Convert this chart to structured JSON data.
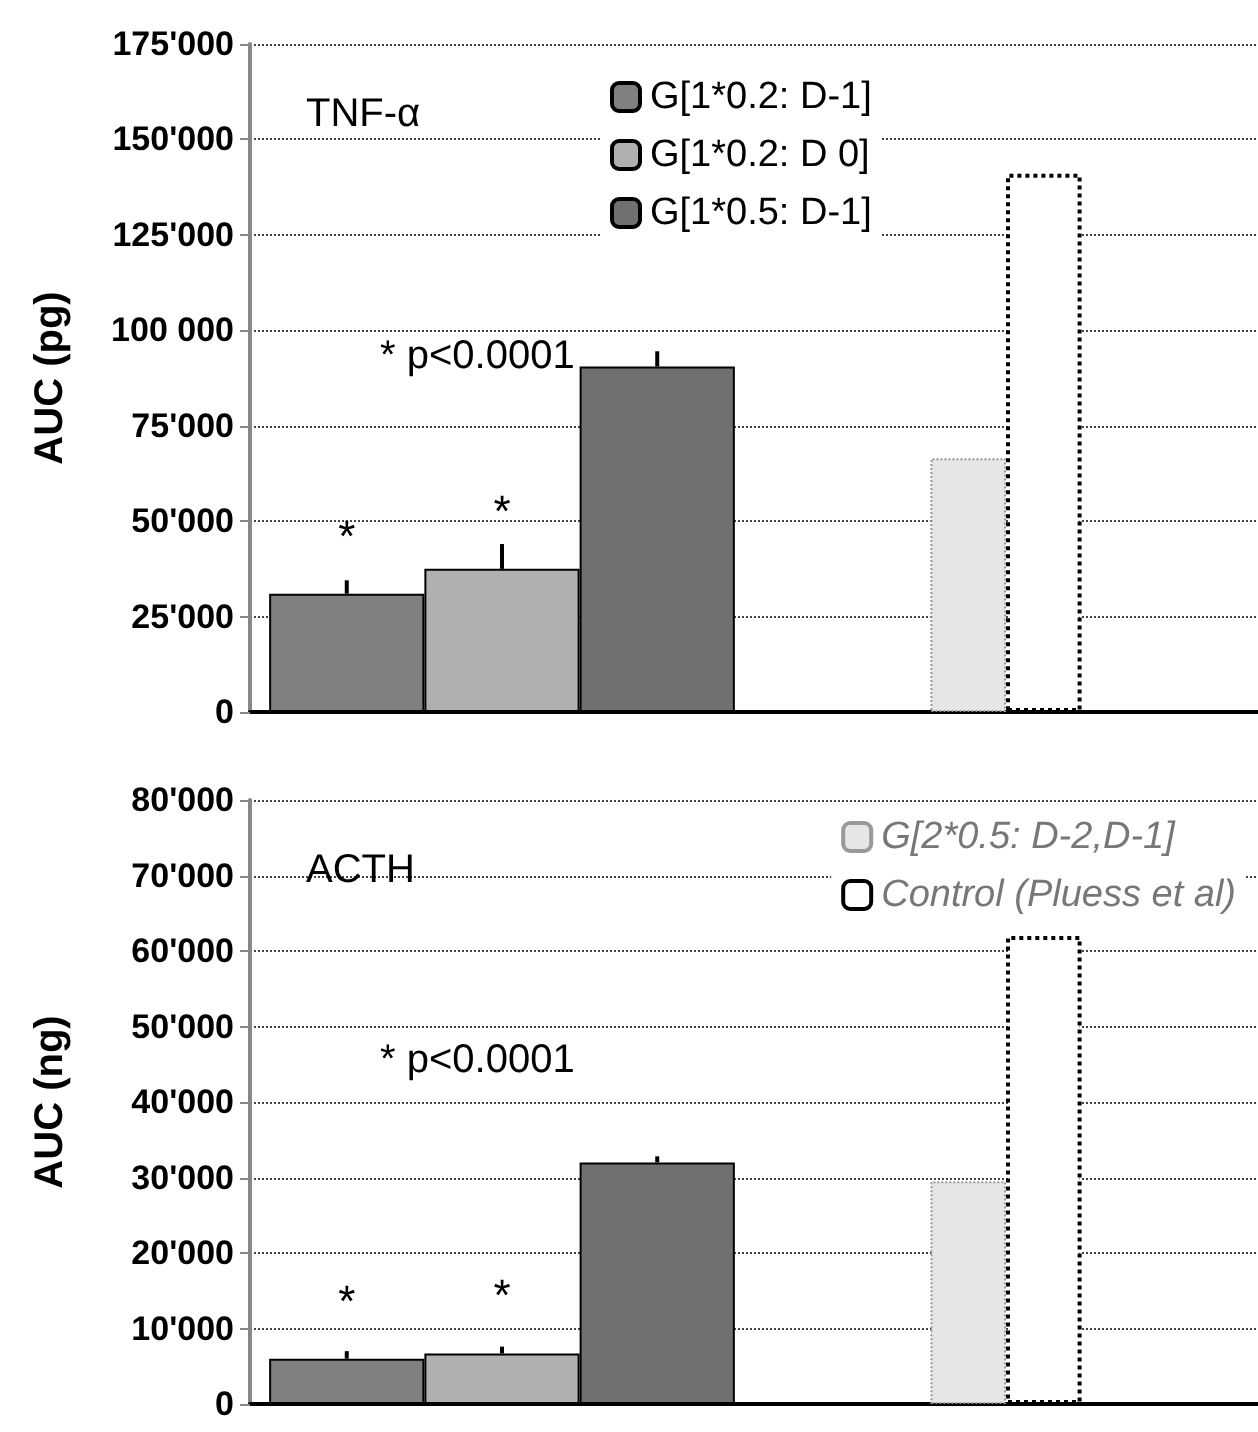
{
  "chart_data": [
    {
      "type": "bar",
      "title": "TNF-α",
      "ylabel": "AUC (pg)",
      "categories": [
        null,
        null
      ],
      "series": [
        {
          "name": "G[1*0.2: D-1]",
          "color": "#808080",
          "values": [
            31000,
            null
          ],
          "errors": [
            [
              31000,
              34500
            ],
            null
          ],
          "value_labels": [
            "*",
            null
          ]
        },
        {
          "name": "G[1*0.2: D 0]",
          "color": "#b0b0b0",
          "values": [
            37500,
            null
          ],
          "errors": [
            [
              37500,
              44000
            ],
            null
          ],
          "value_labels": [
            "*",
            null
          ]
        },
        {
          "name": "G[1*0.5: D-1]",
          "color": "#707070",
          "values": [
            90500,
            null
          ],
          "errors": [
            [
              90500,
              94500
            ],
            null
          ]
        },
        {
          "color": "#e6e6e6",
          "values": [
            null,
            66500
          ]
        },
        {
          "color": "#ffffff",
          "values": [
            null,
            141000
          ]
        }
      ],
      "ylim": [
        0,
        175000
      ],
      "yticks": [
        {
          "value": 0,
          "label": "0"
        },
        {
          "value": 25000,
          "label": "25'000"
        },
        {
          "value": 50000,
          "label": "50'000"
        },
        {
          "value": 75000,
          "label": "75'000"
        },
        {
          "value": 100000,
          "label": "100 000"
        },
        {
          "value": 125000,
          "label": "125'000"
        },
        {
          "value": 150000,
          "label": "150'000"
        },
        {
          "value": 175000,
          "label": "175'000"
        }
      ],
      "grid": "y",
      "legend": "top",
      "annotations": [
        "* p<0.0001"
      ]
    },
    {
      "type": "bar",
      "title": "ACTH",
      "ylabel": "AUC (ng)",
      "categories": [
        null,
        null
      ],
      "series": [
        {
          "color": "#808080",
          "values": [
            6000,
            null
          ],
          "errors": [
            [
              6000,
              7000
            ],
            null
          ],
          "value_labels": [
            "*",
            null
          ]
        },
        {
          "color": "#b0b0b0",
          "values": [
            6700,
            null
          ],
          "errors": [
            [
              6700,
              7600
            ],
            null
          ],
          "value_labels": [
            "*",
            null
          ]
        },
        {
          "color": "#707070",
          "values": [
            32000,
            null
          ],
          "errors": [
            [
              32000,
              32800
            ],
            null
          ]
        },
        {
          "name": "G[2*0.5: D-2,D-1]",
          "color": "#e6e6e6",
          "values": [
            null,
            29500
          ]
        },
        {
          "name": "Control (Pluess et al)",
          "color": "#ffffff",
          "values": [
            null,
            62000
          ]
        }
      ],
      "ylim": [
        0,
        80000
      ],
      "yticks": [
        {
          "value": 0,
          "label": "0"
        },
        {
          "value": 10000,
          "label": "10'000"
        },
        {
          "value": 20000,
          "label": "20'000"
        },
        {
          "value": 30000,
          "label": "30'000"
        },
        {
          "value": 40000,
          "label": "40'000"
        },
        {
          "value": 50000,
          "label": "50'000"
        },
        {
          "value": 60000,
          "label": "60'000"
        },
        {
          "value": 70000,
          "label": "70'000"
        },
        {
          "value": 80000,
          "label": "80'000"
        }
      ],
      "grid": "y",
      "legend": "top right",
      "annotations": [
        "* p<0.0001"
      ]
    }
  ]
}
